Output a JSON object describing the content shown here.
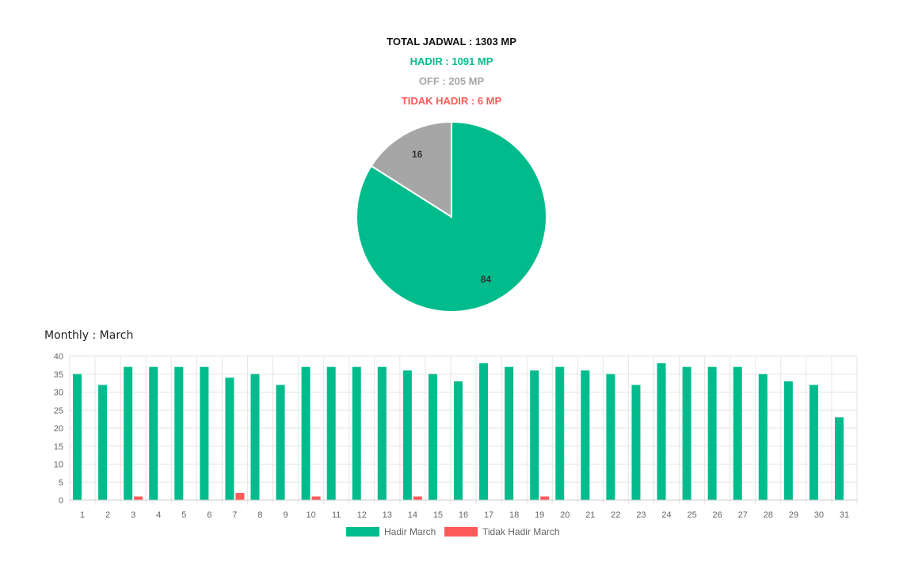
{
  "summary": {
    "total": "TOTAL JADWAL : 1303 MP",
    "hadir": "HADIR : 1091 MP",
    "off": "OFF : 205 MP",
    "tidak_hadir": "TIDAK HADIR : 6 MP"
  },
  "colors": {
    "hadir": "#00BC8C",
    "off": "#A6A6A6",
    "tidak_hadir": "#FF5A5A",
    "total": "#111111",
    "grid": "#E6E6E6",
    "axis_text": "#666666"
  },
  "chart_data": [
    {
      "type": "pie",
      "labels": [
        "Hadir",
        "Off"
      ],
      "values": [
        84,
        16
      ],
      "slice_labels": [
        "84",
        "16"
      ],
      "colors": [
        "#00BC8C",
        "#A6A6A6"
      ],
      "start": "top",
      "direction": "clockwise"
    },
    {
      "type": "bar",
      "title": "Monthly : March",
      "categories": [
        "1",
        "2",
        "3",
        "4",
        "5",
        "6",
        "7",
        "8",
        "9",
        "10",
        "11",
        "12",
        "13",
        "14",
        "15",
        "16",
        "17",
        "18",
        "19",
        "20",
        "21",
        "22",
        "23",
        "24",
        "25",
        "26",
        "27",
        "28",
        "29",
        "30",
        "31"
      ],
      "series": [
        {
          "name": "Hadir March",
          "color": "#00BC8C",
          "values": [
            35,
            32,
            37,
            37,
            37,
            37,
            34,
            35,
            32,
            37,
            37,
            37,
            37,
            36,
            35,
            33,
            38,
            37,
            36,
            37,
            36,
            35,
            32,
            38,
            37,
            37,
            37,
            35,
            33,
            32,
            23
          ]
        },
        {
          "name": "Tidak Hadir March",
          "color": "#FF5A5A",
          "values": [
            0,
            0,
            1,
            0,
            0,
            0,
            2,
            0,
            0,
            1,
            0,
            0,
            0,
            1,
            0,
            0,
            0,
            0,
            1,
            0,
            0,
            0,
            0,
            0,
            0,
            0,
            0,
            0,
            0,
            0,
            0
          ]
        }
      ],
      "ylim": [
        0,
        40
      ],
      "yticks": [
        0,
        5,
        10,
        15,
        20,
        25,
        30,
        35,
        40
      ],
      "grid": true,
      "legend_position": "bottom"
    }
  ]
}
